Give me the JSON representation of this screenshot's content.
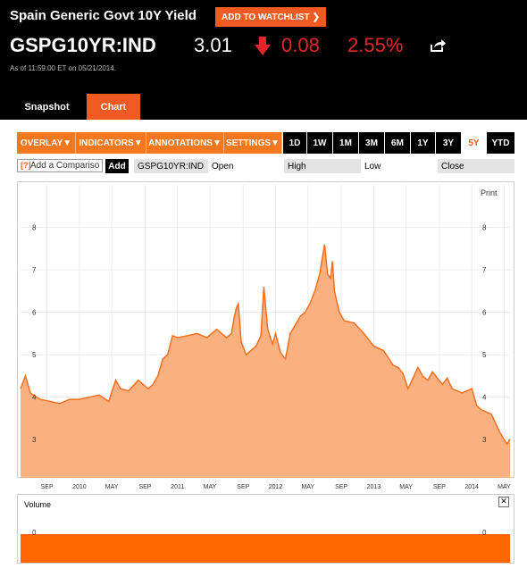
{
  "header": {
    "title": "Spain Generic Govt 10Y Yield",
    "watchlist_label": "ADD TO WATCHLIST",
    "ticker": "GSPG10YR:IND",
    "price": "3.01",
    "change": "0.08",
    "change_pct": "2.55%",
    "as_of": "As of 11:59:00 ET on 05/21/2014."
  },
  "tabs": {
    "snapshot": "Snapshot",
    "chart": "Chart"
  },
  "toolbar": {
    "menus": [
      "OVERLAY",
      "INDICATORS",
      "ANNOTATIONS",
      "SETTINGS"
    ],
    "ranges": [
      "1D",
      "1W",
      "1M",
      "3M",
      "6M",
      "1Y",
      "3Y",
      "5Y",
      "YTD"
    ],
    "active_range": "5Y"
  },
  "compare": {
    "placeholder": "Add a Compariso",
    "help": "[?]",
    "add_label": "Add",
    "symbol": "GSPG10YR:IND",
    "open_label": "Open",
    "high_label": "High",
    "low_label": "Low",
    "close_label": "Close"
  },
  "colors": {
    "accent": "#f15a22",
    "fill": "#fbb07f",
    "line": "#f37021",
    "down": "#e6252b"
  },
  "chart_data": {
    "type": "area",
    "print_label": "Print",
    "ylim": [
      2.1,
      9
    ],
    "yticks": [
      "3",
      "4",
      "5",
      "6",
      "7",
      "8"
    ],
    "xticks": [
      {
        "label": "SEP",
        "t": 2009.67
      },
      {
        "label": "2010",
        "t": 2010.0
      },
      {
        "label": "MAY",
        "t": 2010.33
      },
      {
        "label": "SEP",
        "t": 2010.67
      },
      {
        "label": "2011",
        "t": 2011.0
      },
      {
        "label": "MAY",
        "t": 2011.33
      },
      {
        "label": "SEP",
        "t": 2011.67
      },
      {
        "label": "2012",
        "t": 2012.0
      },
      {
        "label": "MAY",
        "t": 2012.33
      },
      {
        "label": "SEP",
        "t": 2012.67
      },
      {
        "label": "2013",
        "t": 2013.0
      },
      {
        "label": "MAY",
        "t": 2013.33
      },
      {
        "label": "SEP",
        "t": 2013.67
      },
      {
        "label": "2014",
        "t": 2014.0
      },
      {
        "label": "MAY",
        "t": 2014.33
      }
    ],
    "x": [
      2009.4,
      2009.45,
      2009.5,
      2009.6,
      2009.7,
      2009.8,
      2009.9,
      2010.0,
      2010.1,
      2010.2,
      2010.3,
      2010.37,
      2010.42,
      2010.5,
      2010.6,
      2010.7,
      2010.75,
      2010.8,
      2010.85,
      2010.9,
      2010.95,
      2011.0,
      2011.1,
      2011.2,
      2011.3,
      2011.4,
      2011.5,
      2011.55,
      2011.58,
      2011.6,
      2011.62,
      2011.65,
      2011.7,
      2011.8,
      2011.85,
      2011.88,
      2011.92,
      2011.97,
      2012.0,
      2012.05,
      2012.1,
      2012.15,
      2012.2,
      2012.25,
      2012.3,
      2012.35,
      2012.4,
      2012.45,
      2012.5,
      2012.53,
      2012.56,
      2012.58,
      2012.6,
      2012.65,
      2012.7,
      2012.8,
      2012.9,
      2013.0,
      2013.1,
      2013.2,
      2013.25,
      2013.3,
      2013.35,
      2013.45,
      2013.5,
      2013.55,
      2013.6,
      2013.7,
      2013.75,
      2013.8,
      2013.9,
      2014.0,
      2014.05,
      2014.1,
      2014.2,
      2014.28,
      2014.33,
      2014.36,
      2014.39
    ],
    "y": [
      4.2,
      4.5,
      4.1,
      3.95,
      3.9,
      3.85,
      3.95,
      3.95,
      4.0,
      4.05,
      3.9,
      4.4,
      4.2,
      4.15,
      4.4,
      4.2,
      4.3,
      4.5,
      4.9,
      5.0,
      5.45,
      5.4,
      5.45,
      5.5,
      5.4,
      5.6,
      5.4,
      5.5,
      5.9,
      6.1,
      6.2,
      5.3,
      5.0,
      5.2,
      5.45,
      6.6,
      5.6,
      5.25,
      5.5,
      5.05,
      4.9,
      5.5,
      5.7,
      5.9,
      6.0,
      6.2,
      6.5,
      6.9,
      7.6,
      6.9,
      6.8,
      7.2,
      6.5,
      6.0,
      5.8,
      5.75,
      5.5,
      5.2,
      5.1,
      4.75,
      4.7,
      4.55,
      4.2,
      4.7,
      4.5,
      4.4,
      4.6,
      4.3,
      4.45,
      4.2,
      4.1,
      4.2,
      3.8,
      3.7,
      3.6,
      3.2,
      3.0,
      2.9,
      3.01
    ]
  },
  "volume": {
    "label": "Volume",
    "tick": "0",
    "close_glyph": "✕"
  }
}
